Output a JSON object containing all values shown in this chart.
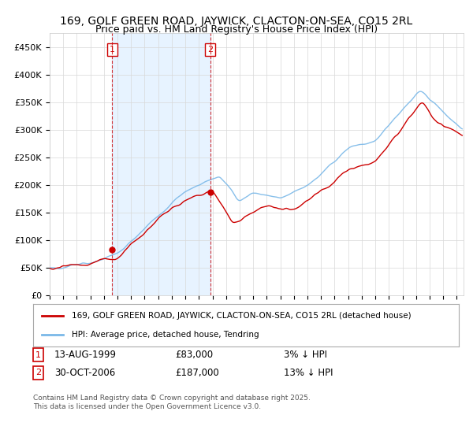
{
  "title": "169, GOLF GREEN ROAD, JAYWICK, CLACTON-ON-SEA, CO15 2RL",
  "subtitle": "Price paid vs. HM Land Registry's House Price Index (HPI)",
  "title_fontsize": 10,
  "ylabel_ticks": [
    "£0",
    "£50K",
    "£100K",
    "£150K",
    "£200K",
    "£250K",
    "£300K",
    "£350K",
    "£400K",
    "£450K"
  ],
  "ytick_values": [
    0,
    50000,
    100000,
    150000,
    200000,
    250000,
    300000,
    350000,
    400000,
    450000
  ],
  "ylim": [
    0,
    475000
  ],
  "xlim_start": 1995.0,
  "xlim_end": 2025.5,
  "hpi_color": "#7ab8e8",
  "price_color": "#cc0000",
  "shade_color": "#ddeeff",
  "sale1_date": 1999.617,
  "sale1_price": 83000,
  "sale1_label": "1",
  "sale2_date": 2006.831,
  "sale2_price": 187000,
  "sale2_label": "2",
  "legend_entry1": "169, GOLF GREEN ROAD, JAYWICK, CLACTON-ON-SEA, CO15 2RL (detached house)",
  "legend_entry2": "HPI: Average price, detached house, Tendring",
  "annotation1_date": "13-AUG-1999",
  "annotation1_price": "£83,000",
  "annotation1_hpi": "3% ↓ HPI",
  "annotation2_date": "30-OCT-2006",
  "annotation2_price": "£187,000",
  "annotation2_hpi": "13% ↓ HPI",
  "footnote": "Contains HM Land Registry data © Crown copyright and database right 2025.\nThis data is licensed under the Open Government Licence v3.0.",
  "background_color": "#ffffff",
  "grid_color": "#d8d8d8"
}
